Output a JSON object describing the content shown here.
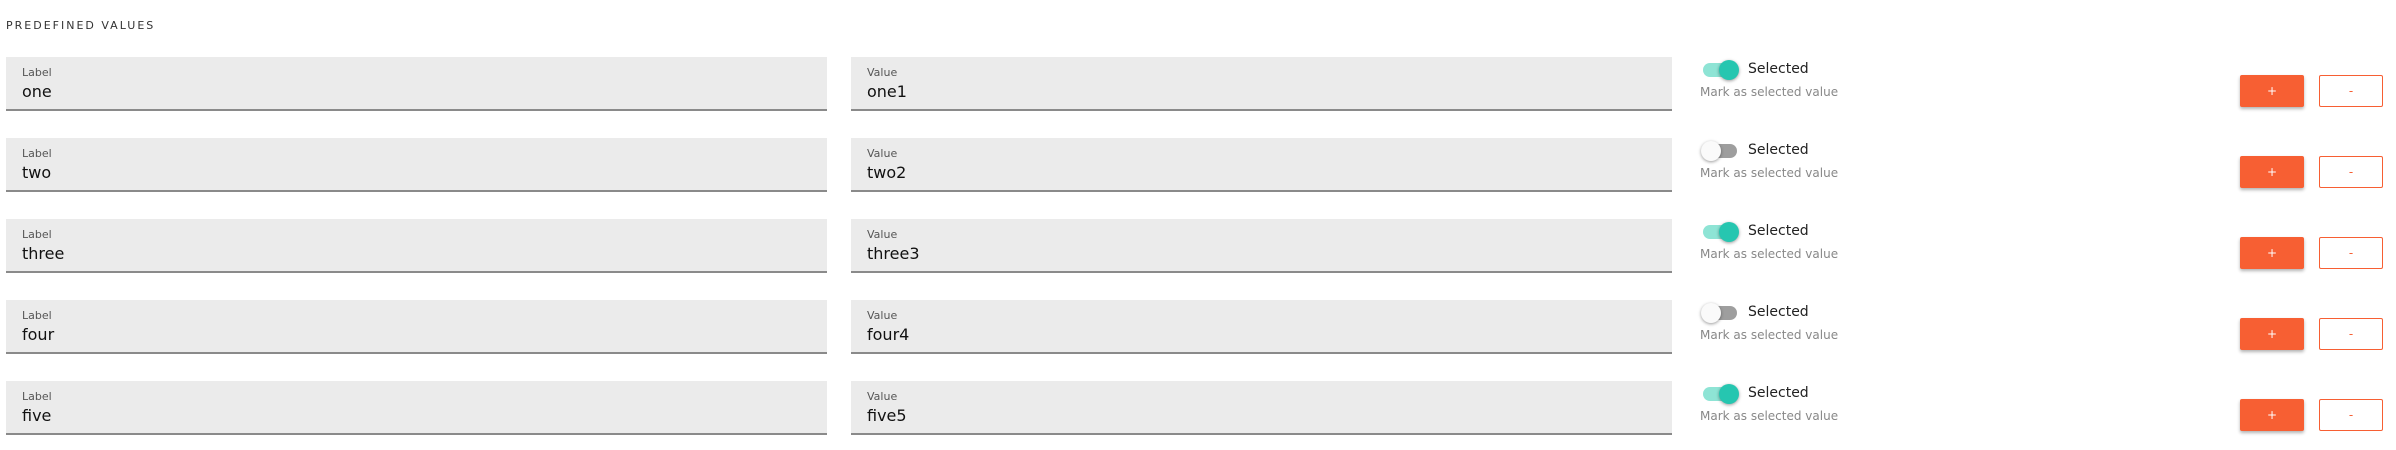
{
  "section_title": "PREDEFINED VALUES",
  "field_labels": {
    "label": "Label",
    "value": "Value"
  },
  "toggle_label": "Selected",
  "toggle_hint": "Mark as selected value",
  "add_label": "+",
  "remove_label": "-",
  "colors": {
    "accent": "#f75f33",
    "toggle_on": "#26c6b0",
    "toggle_on_track": "#8ee4d5",
    "toggle_off_track": "#9e9e9e",
    "field_bg": "#ebebeb"
  },
  "rows": [
    {
      "label": "one",
      "value": "one1",
      "selected": true
    },
    {
      "label": "two",
      "value": "two2",
      "selected": false
    },
    {
      "label": "three",
      "value": "three3",
      "selected": true
    },
    {
      "label": "four",
      "value": "four4",
      "selected": false
    },
    {
      "label": "five",
      "value": "five5",
      "selected": true
    }
  ]
}
